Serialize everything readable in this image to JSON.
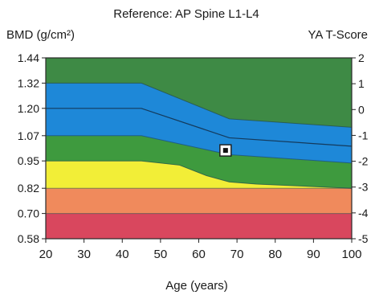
{
  "chart_data": {
    "type": "area",
    "title": "Reference: AP Spine L1-L4",
    "ylabel": "BMD (g/cm²)",
    "y2label": "YA T-Score",
    "xlabel": "Age (years)",
    "xlim": [
      20,
      100
    ],
    "ylim": [
      0.58,
      1.44
    ],
    "y2lim": [
      -5,
      2
    ],
    "x_ticks": [
      "20",
      "30",
      "40",
      "50",
      "60",
      "70",
      "80",
      "90",
      "100"
    ],
    "y_ticks": [
      "1.44",
      "1.32",
      "1.20",
      "1.07",
      "0.95",
      "0.82",
      "0.70",
      "0.58"
    ],
    "y2_ticks": [
      "2",
      "1",
      "0",
      "-1",
      "-2",
      "-3",
      "-4",
      "-5"
    ],
    "bands": [
      {
        "zone": "red",
        "color": "#d9475e",
        "lower": [
          [
            20,
            0.58
          ],
          [
            100,
            0.58
          ]
        ],
        "upper": [
          [
            20,
            0.7
          ],
          [
            100,
            0.7
          ]
        ]
      },
      {
        "zone": "orange",
        "color": "#f08a5c",
        "lower": [
          [
            20,
            0.7
          ],
          [
            100,
            0.7
          ]
        ],
        "upper": [
          [
            20,
            0.82
          ],
          [
            100,
            0.82
          ]
        ]
      },
      {
        "zone": "yellow",
        "color": "#f2ee37",
        "lower": [
          [
            20,
            0.82
          ],
          [
            100,
            0.82
          ]
        ],
        "upper": [
          [
            20,
            0.95
          ],
          [
            45,
            0.95
          ],
          [
            55,
            0.93
          ],
          [
            62,
            0.88
          ],
          [
            68,
            0.85
          ],
          [
            75,
            0.84
          ],
          [
            100,
            0.82
          ]
        ]
      },
      {
        "zone": "green-low",
        "color": "#3e9a3e",
        "lower": [
          [
            20,
            0.95
          ],
          [
            45,
            0.95
          ],
          [
            55,
            0.93
          ],
          [
            62,
            0.88
          ],
          [
            68,
            0.85
          ],
          [
            75,
            0.84
          ],
          [
            100,
            0.82
          ]
        ],
        "upper": [
          [
            20,
            1.07
          ],
          [
            45,
            1.07
          ],
          [
            68,
            0.98
          ],
          [
            100,
            0.94
          ]
        ]
      },
      {
        "zone": "blue",
        "color": "#1e88d8",
        "lower": [
          [
            20,
            1.07
          ],
          [
            45,
            1.07
          ],
          [
            68,
            0.98
          ],
          [
            100,
            0.94
          ]
        ],
        "upper": [
          [
            20,
            1.32
          ],
          [
            45,
            1.32
          ],
          [
            68,
            1.15
          ],
          [
            100,
            1.11
          ]
        ]
      },
      {
        "zone": "green-high",
        "color": "#3e8a45",
        "lower": [
          [
            20,
            1.32
          ],
          [
            45,
            1.32
          ],
          [
            68,
            1.15
          ],
          [
            100,
            1.11
          ]
        ],
        "upper": [
          [
            20,
            1.44
          ],
          [
            100,
            1.44
          ]
        ]
      }
    ],
    "reference_line": [
      [
        20,
        1.2
      ],
      [
        45,
        1.2
      ],
      [
        68,
        1.06
      ],
      [
        100,
        1.02
      ]
    ],
    "patient_point": {
      "x": 67,
      "y": 1.0
    },
    "grid": false
  }
}
